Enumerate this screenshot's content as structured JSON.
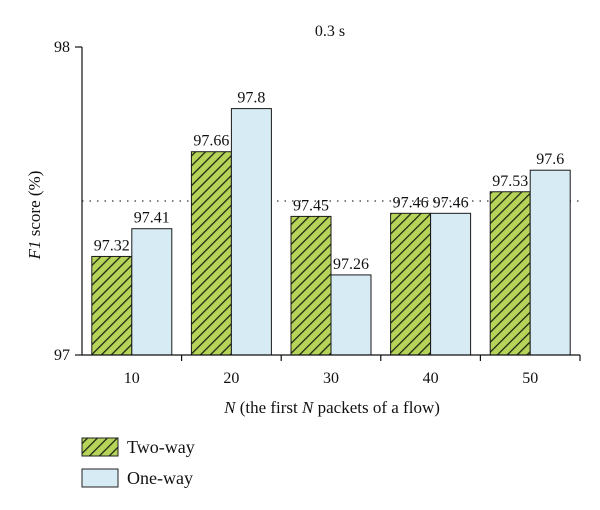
{
  "chart_data": {
    "type": "bar",
    "title": "0.3 s",
    "xlabel": "N (the first N packets of a flow)",
    "xlabel_italic": "N",
    "xlabel_rest": " (the first ",
    "xlabel_italic2": "N",
    "xlabel_rest2": " packets of a flow)",
    "ylabel": "F1 score (%)",
    "ylabel_italic": "F1",
    "ylabel_rest": " score (%)",
    "ylim": [
      97,
      98
    ],
    "yticks": [
      "97",
      "98"
    ],
    "categories": [
      "10",
      "20",
      "30",
      "40",
      "50"
    ],
    "reference_line": 97.5,
    "grid": false,
    "legend_position": "bottom-left",
    "series": [
      {
        "name": "Two-way",
        "values": [
          97.32,
          97.66,
          97.45,
          97.46,
          97.53
        ],
        "labels": [
          "97.32",
          "97.66",
          "97.45",
          "97.46",
          "97.53"
        ],
        "color": "#b7d35a",
        "pattern": "diagonal-hatch"
      },
      {
        "name": "One-way",
        "values": [
          97.41,
          97.8,
          97.26,
          97.46,
          97.6
        ],
        "labels": [
          "97.41",
          "97.8",
          "97.26",
          "97.46",
          "97.6"
        ],
        "color": "#d6ebf3",
        "pattern": "solid"
      }
    ]
  }
}
